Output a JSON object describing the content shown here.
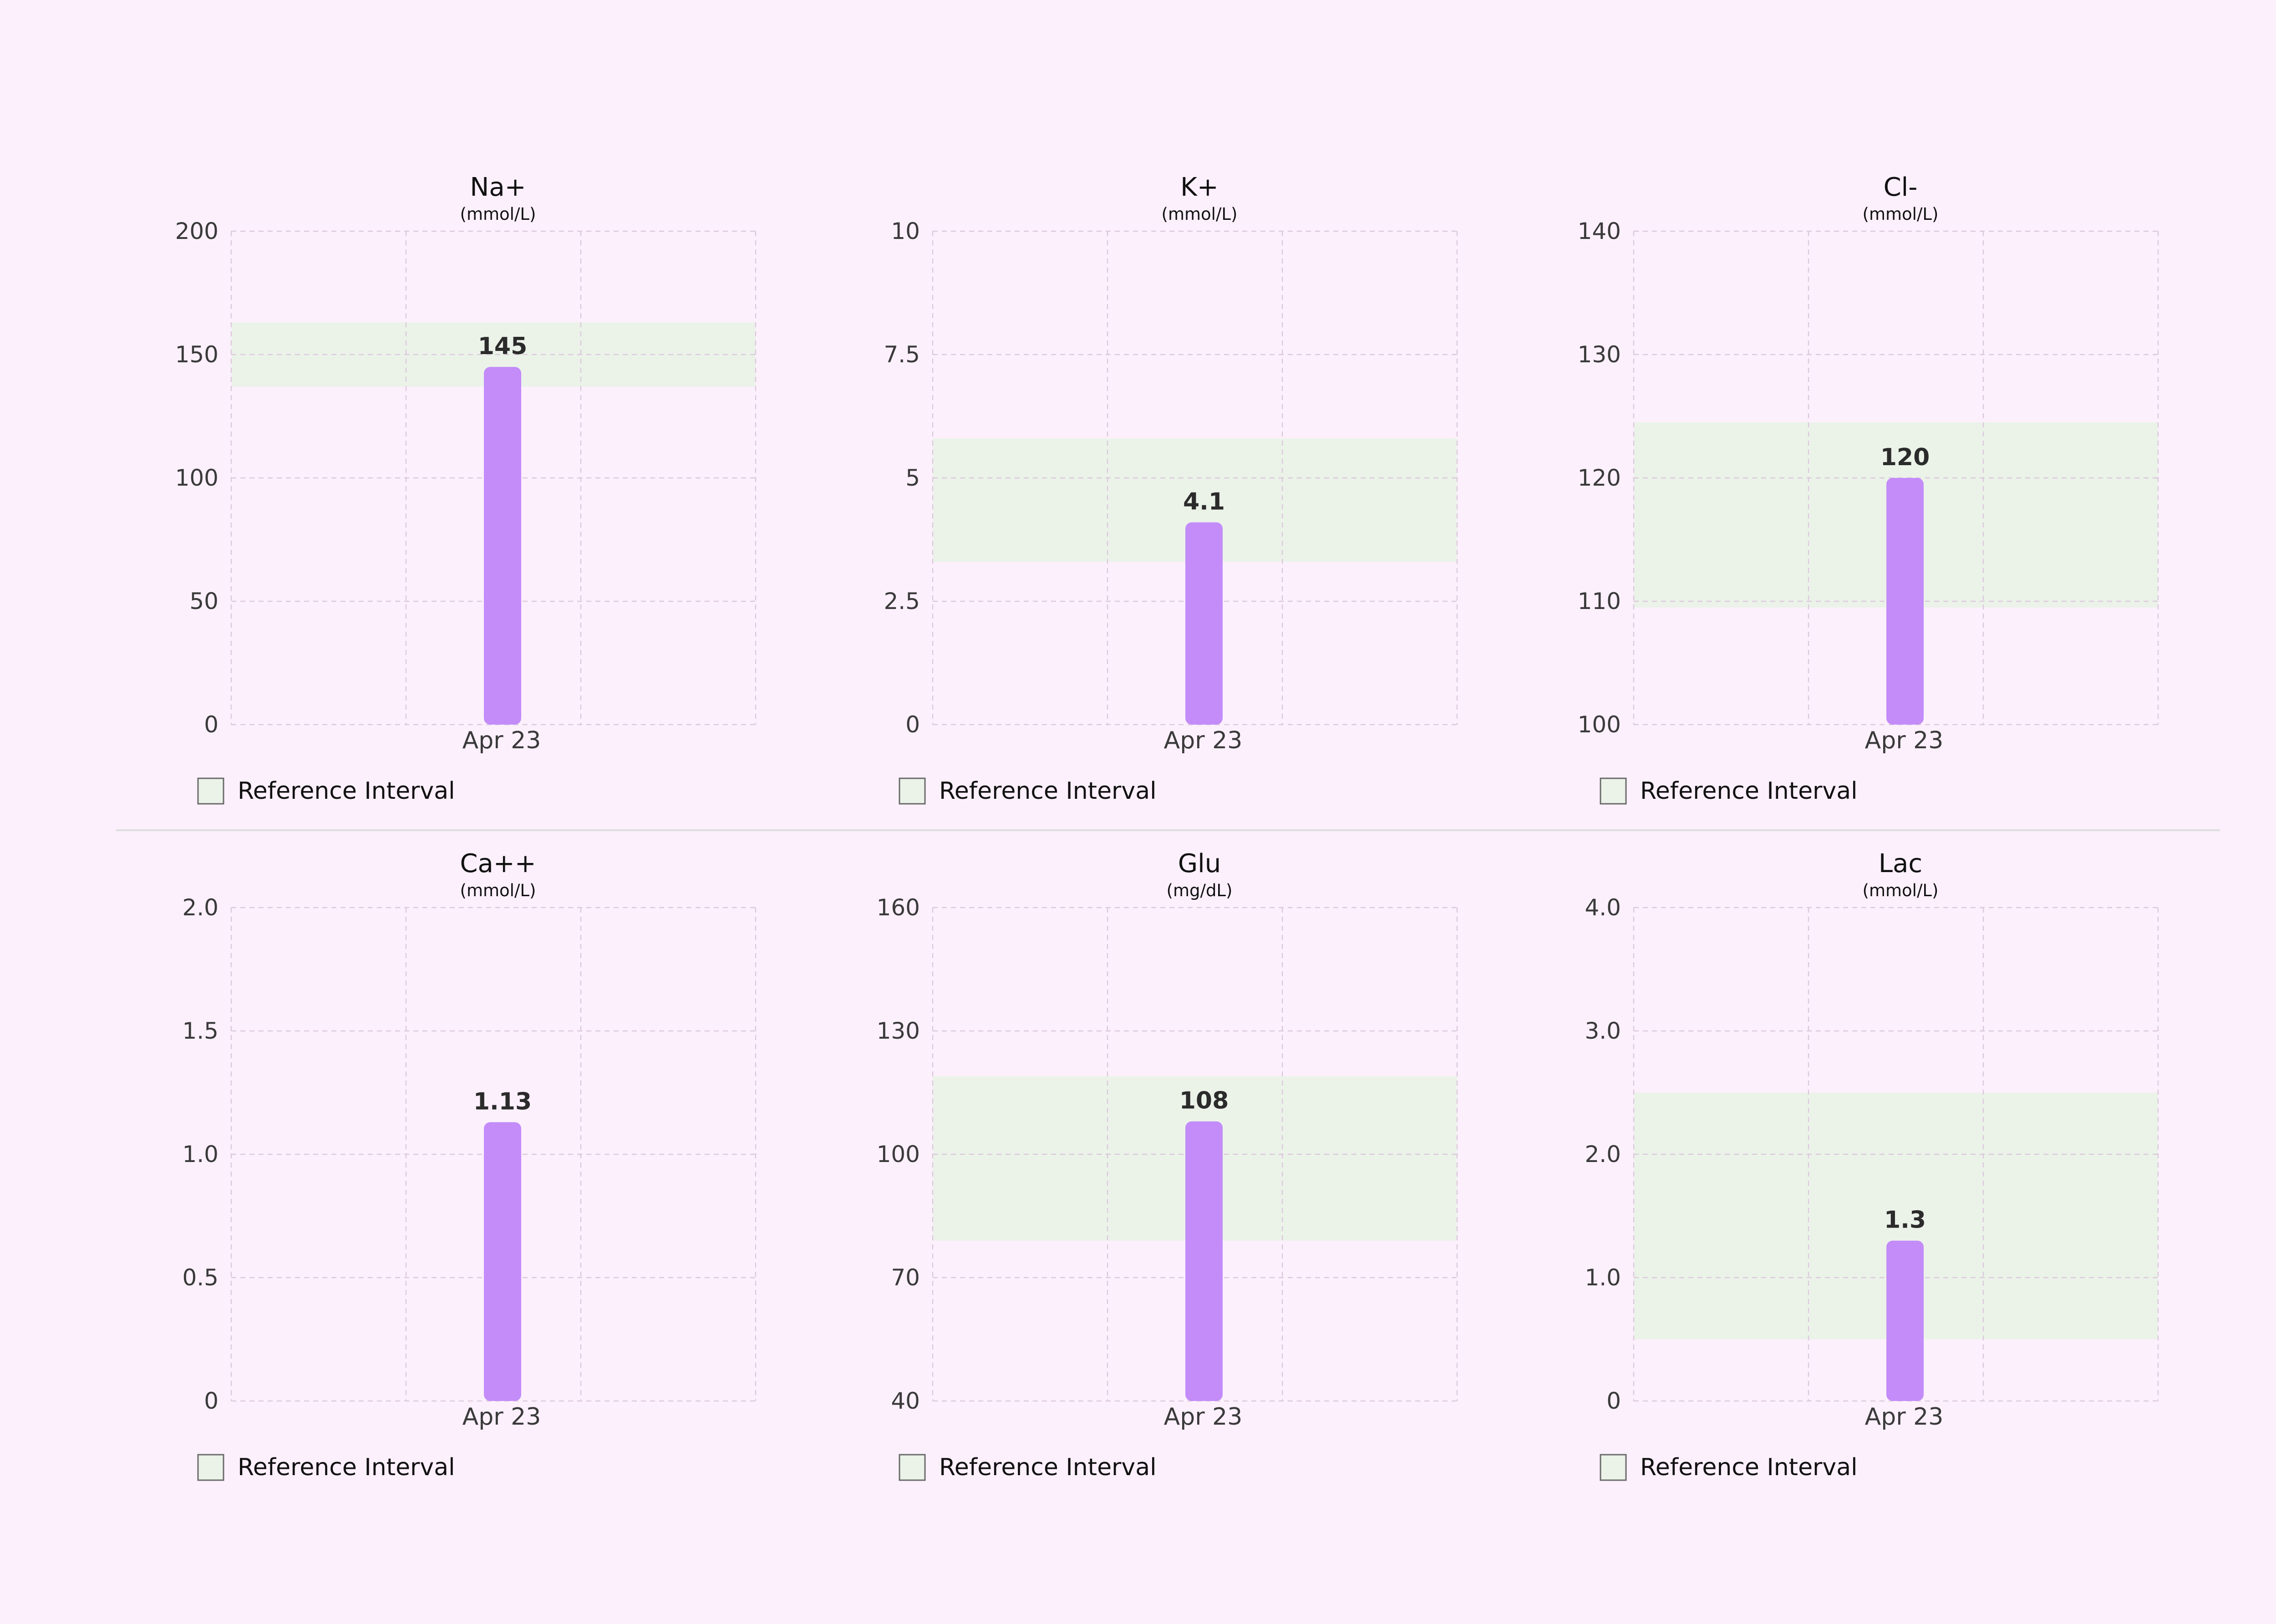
{
  "chart_data": [
    {
      "type": "bar",
      "title": "Na+",
      "subtitle": "(mmol/L)",
      "categories": [
        "Apr 23"
      ],
      "values": [
        145
      ],
      "value_labels": [
        "145"
      ],
      "yticks": [
        0,
        50,
        100,
        150,
        200
      ],
      "ytick_labels": [
        "0",
        "50",
        "100",
        "150",
        "200"
      ],
      "ylim": [
        0,
        200
      ],
      "reference_interval": [
        137,
        163
      ],
      "legend": "Reference Interval",
      "legend_position": "bottom-left",
      "grid": true
    },
    {
      "type": "bar",
      "title": "K+",
      "subtitle": "(mmol/L)",
      "categories": [
        "Apr 23"
      ],
      "values": [
        4.1
      ],
      "value_labels": [
        "4.1"
      ],
      "yticks": [
        0,
        2.5,
        5,
        7.5,
        10
      ],
      "ytick_labels": [
        "0",
        "2.5",
        "5",
        "7.5",
        "10"
      ],
      "ylim": [
        0,
        10
      ],
      "reference_interval": [
        3.3,
        5.8
      ],
      "legend": "Reference Interval",
      "legend_position": "bottom-left",
      "grid": true
    },
    {
      "type": "bar",
      "title": "Cl-",
      "subtitle": "(mmol/L)",
      "categories": [
        "Apr 23"
      ],
      "values": [
        120
      ],
      "value_labels": [
        "120"
      ],
      "yticks": [
        100,
        110,
        120,
        130,
        140
      ],
      "ytick_labels": [
        "100",
        "110",
        "120",
        "130",
        "140"
      ],
      "ylim": [
        100,
        140
      ],
      "reference_interval": [
        109.5,
        124.5
      ],
      "legend": "Reference Interval",
      "legend_position": "bottom-left",
      "grid": true
    },
    {
      "type": "bar",
      "title": "Ca++",
      "subtitle": "(mmol/L)",
      "categories": [
        "Apr 23"
      ],
      "values": [
        1.13
      ],
      "value_labels": [
        "1.13"
      ],
      "yticks": [
        0,
        0.5,
        1.0,
        1.5,
        2.0
      ],
      "ytick_labels": [
        "0",
        "0.5",
        "1.0",
        "1.5",
        "2.0"
      ],
      "ylim": [
        0,
        2.0
      ],
      "reference_interval": null,
      "legend": "Reference Interval",
      "legend_position": "bottom-left",
      "grid": true
    },
    {
      "type": "bar",
      "title": "Glu",
      "subtitle": "(mg/dL)",
      "categories": [
        "Apr 23"
      ],
      "values": [
        108
      ],
      "value_labels": [
        "108"
      ],
      "yticks": [
        40,
        70,
        100,
        130,
        160
      ],
      "ytick_labels": [
        "40",
        "70",
        "100",
        "130",
        "160"
      ],
      "ylim": [
        40,
        160
      ],
      "reference_interval": [
        79,
        119
      ],
      "legend": "Reference Interval",
      "legend_position": "bottom-left",
      "grid": true
    },
    {
      "type": "bar",
      "title": "Lac",
      "subtitle": "(mmol/L)",
      "categories": [
        "Apr 23"
      ],
      "values": [
        1.3
      ],
      "value_labels": [
        "1.3"
      ],
      "yticks": [
        0,
        1.0,
        2.0,
        3.0,
        4.0
      ],
      "ytick_labels": [
        "0",
        "1.0",
        "2.0",
        "3.0",
        "4.0"
      ],
      "ylim": [
        0,
        4.0
      ],
      "reference_interval": [
        0.5,
        2.5
      ],
      "legend": "Reference Interval",
      "legend_position": "bottom-left",
      "grid": true
    }
  ],
  "colors": {
    "background": "#fcf0fc",
    "bar": "#c38cf9",
    "reference_band": "#ebf3e9",
    "grid": "#dcc9dc"
  }
}
